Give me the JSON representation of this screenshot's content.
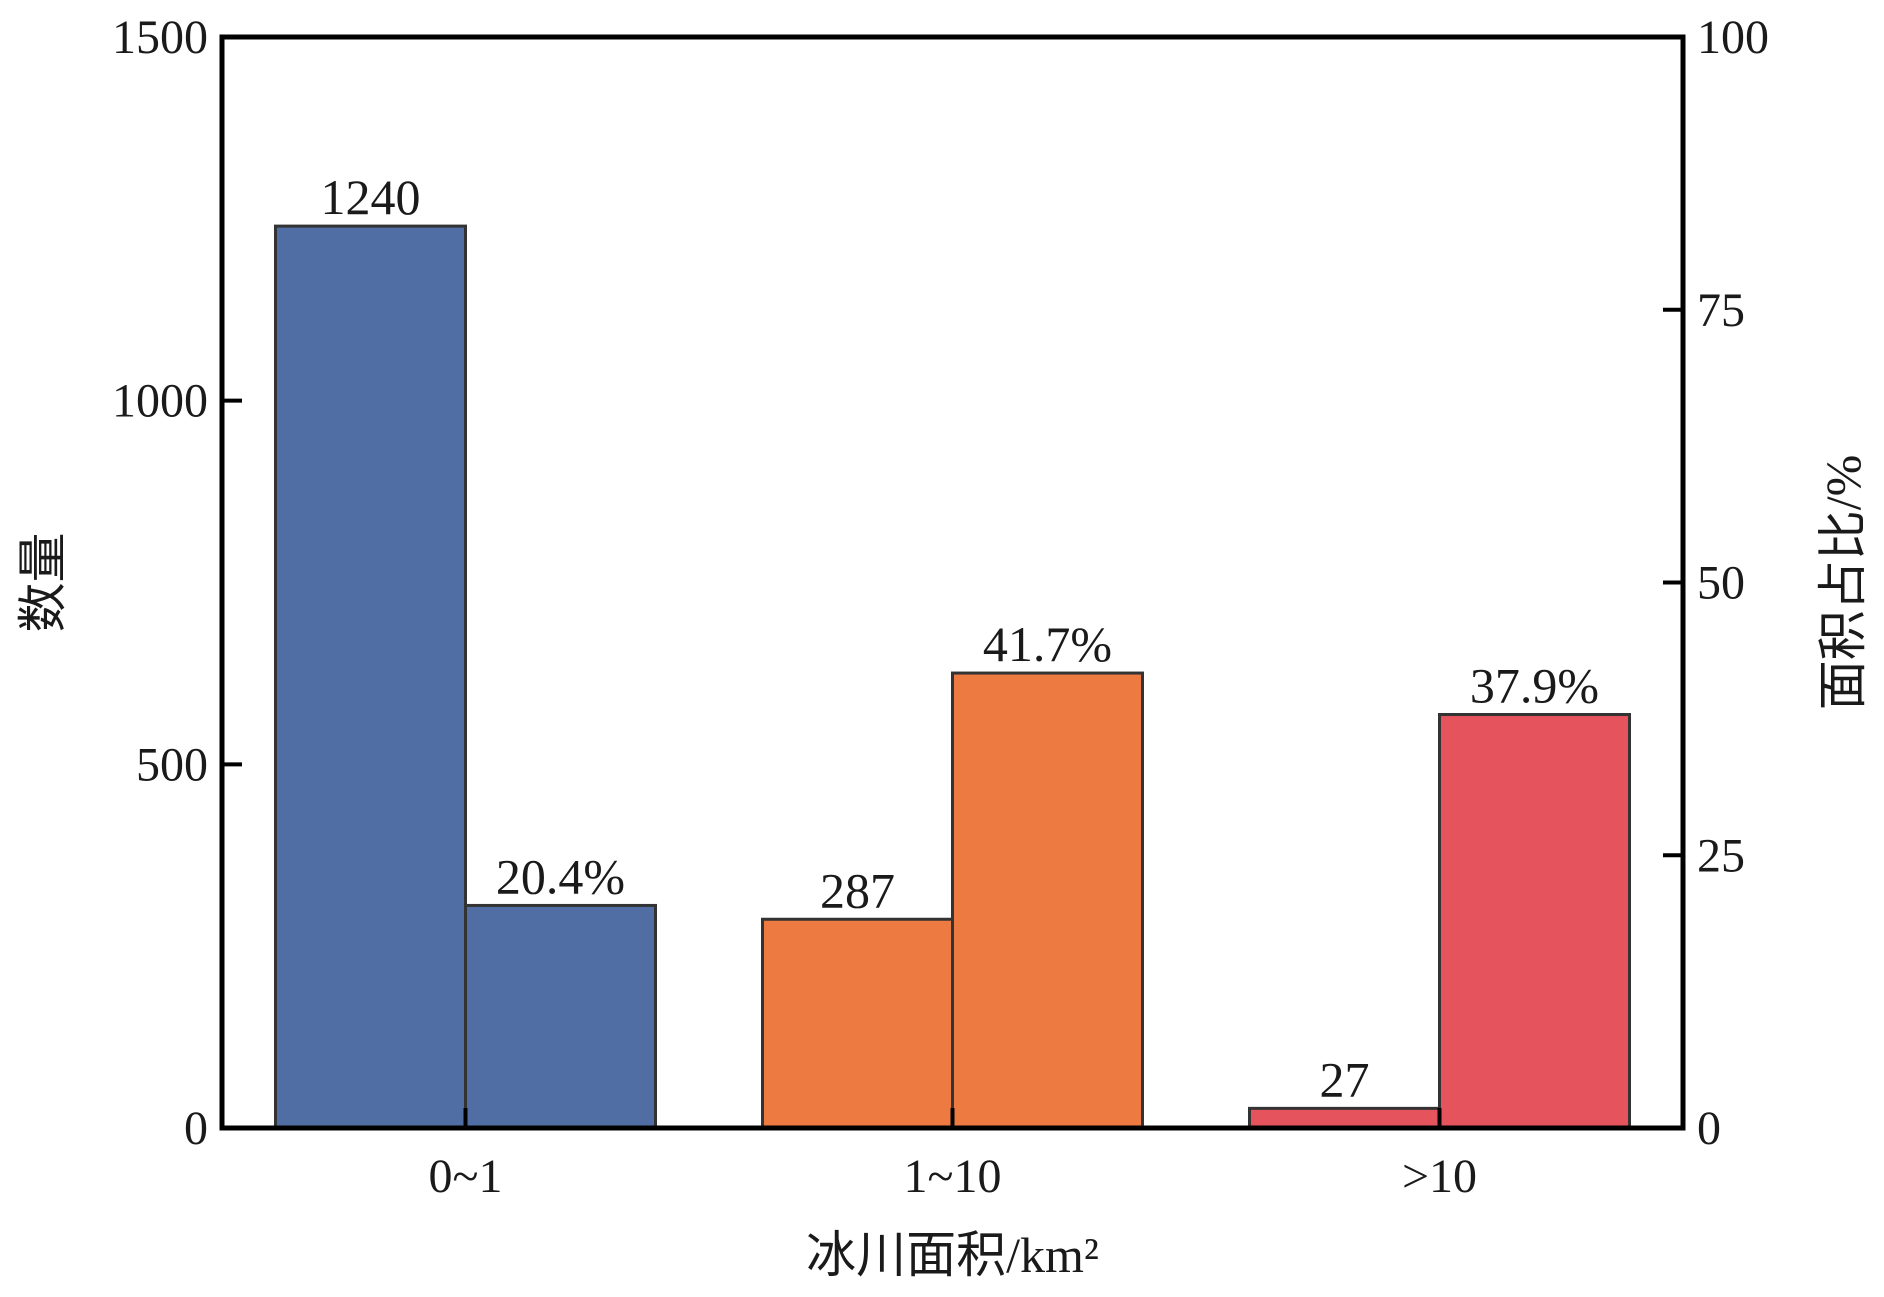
{
  "chart_data": {
    "type": "bar",
    "categories": [
      "0~1",
      "1~10",
      ">10"
    ],
    "series": [
      {
        "values": [
          1240,
          287,
          27
        ],
        "axis": "left",
        "labels": [
          "1240",
          "287",
          "27"
        ]
      },
      {
        "values": [
          20.4,
          41.7,
          37.9
        ],
        "axis": "right",
        "labels": [
          "20.4%",
          "41.7%",
          "37.9%"
        ]
      }
    ],
    "category_colors": [
      "#506ea4",
      "#ed7a41",
      "#e5535c"
    ],
    "xlabel": "冰川面积/km²",
    "ylabel": "数量",
    "y2label": "面积占比/%",
    "ylim": [
      0,
      1500
    ],
    "y2lim": [
      0,
      100
    ],
    "yticks": [
      0,
      500,
      1000,
      1500
    ],
    "y2ticks": [
      0,
      25,
      50,
      75,
      100
    ],
    "grid": false,
    "legend": "none"
  }
}
